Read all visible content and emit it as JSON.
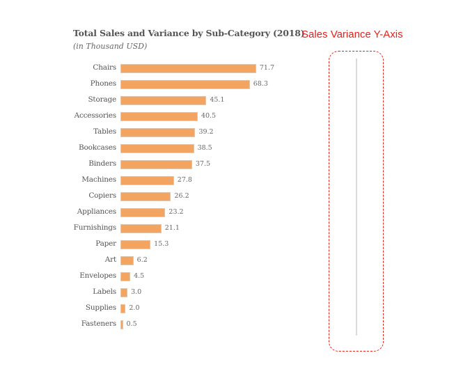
{
  "chart_data": {
    "type": "bar",
    "orientation": "horizontal",
    "title": "Total Sales and Variance by Sub-Category (2018)",
    "subtitle": "(in Thousand USD)",
    "xlabel": "",
    "ylabel": "",
    "grid": false,
    "legend": null,
    "categories": [
      "Chairs",
      "Phones",
      "Storage",
      "Accessories",
      "Tables",
      "Bookcases",
      "Binders",
      "Machines",
      "Copiers",
      "Appliances",
      "Furnishings",
      "Paper",
      "Art",
      "Envelopes",
      "Labels",
      "Supplies",
      "Fasteners"
    ],
    "values": [
      71.7,
      68.3,
      45.1,
      40.5,
      39.2,
      38.5,
      37.5,
      27.8,
      26.2,
      23.2,
      21.1,
      15.3,
      6.2,
      4.5,
      3.0,
      2.0,
      0.5
    ],
    "value_labels": [
      "71.7",
      "68.3",
      "45.1",
      "40.5",
      "39.2",
      "38.5",
      "37.5",
      "27.8",
      "26.2",
      "23.2",
      "21.1",
      "15.3",
      "6.2",
      "4.5",
      "3.0",
      "2.0",
      "0.5"
    ],
    "bar_color": "#f4a461",
    "annotations": [
      {
        "text": "Sales Variance Y-Axis",
        "color": "#e8201a",
        "style": "dashed rounded box around empty vertical axis line"
      }
    ]
  },
  "annotation": {
    "label": "Sales Variance Y-Axis",
    "color": "#e8201a"
  }
}
